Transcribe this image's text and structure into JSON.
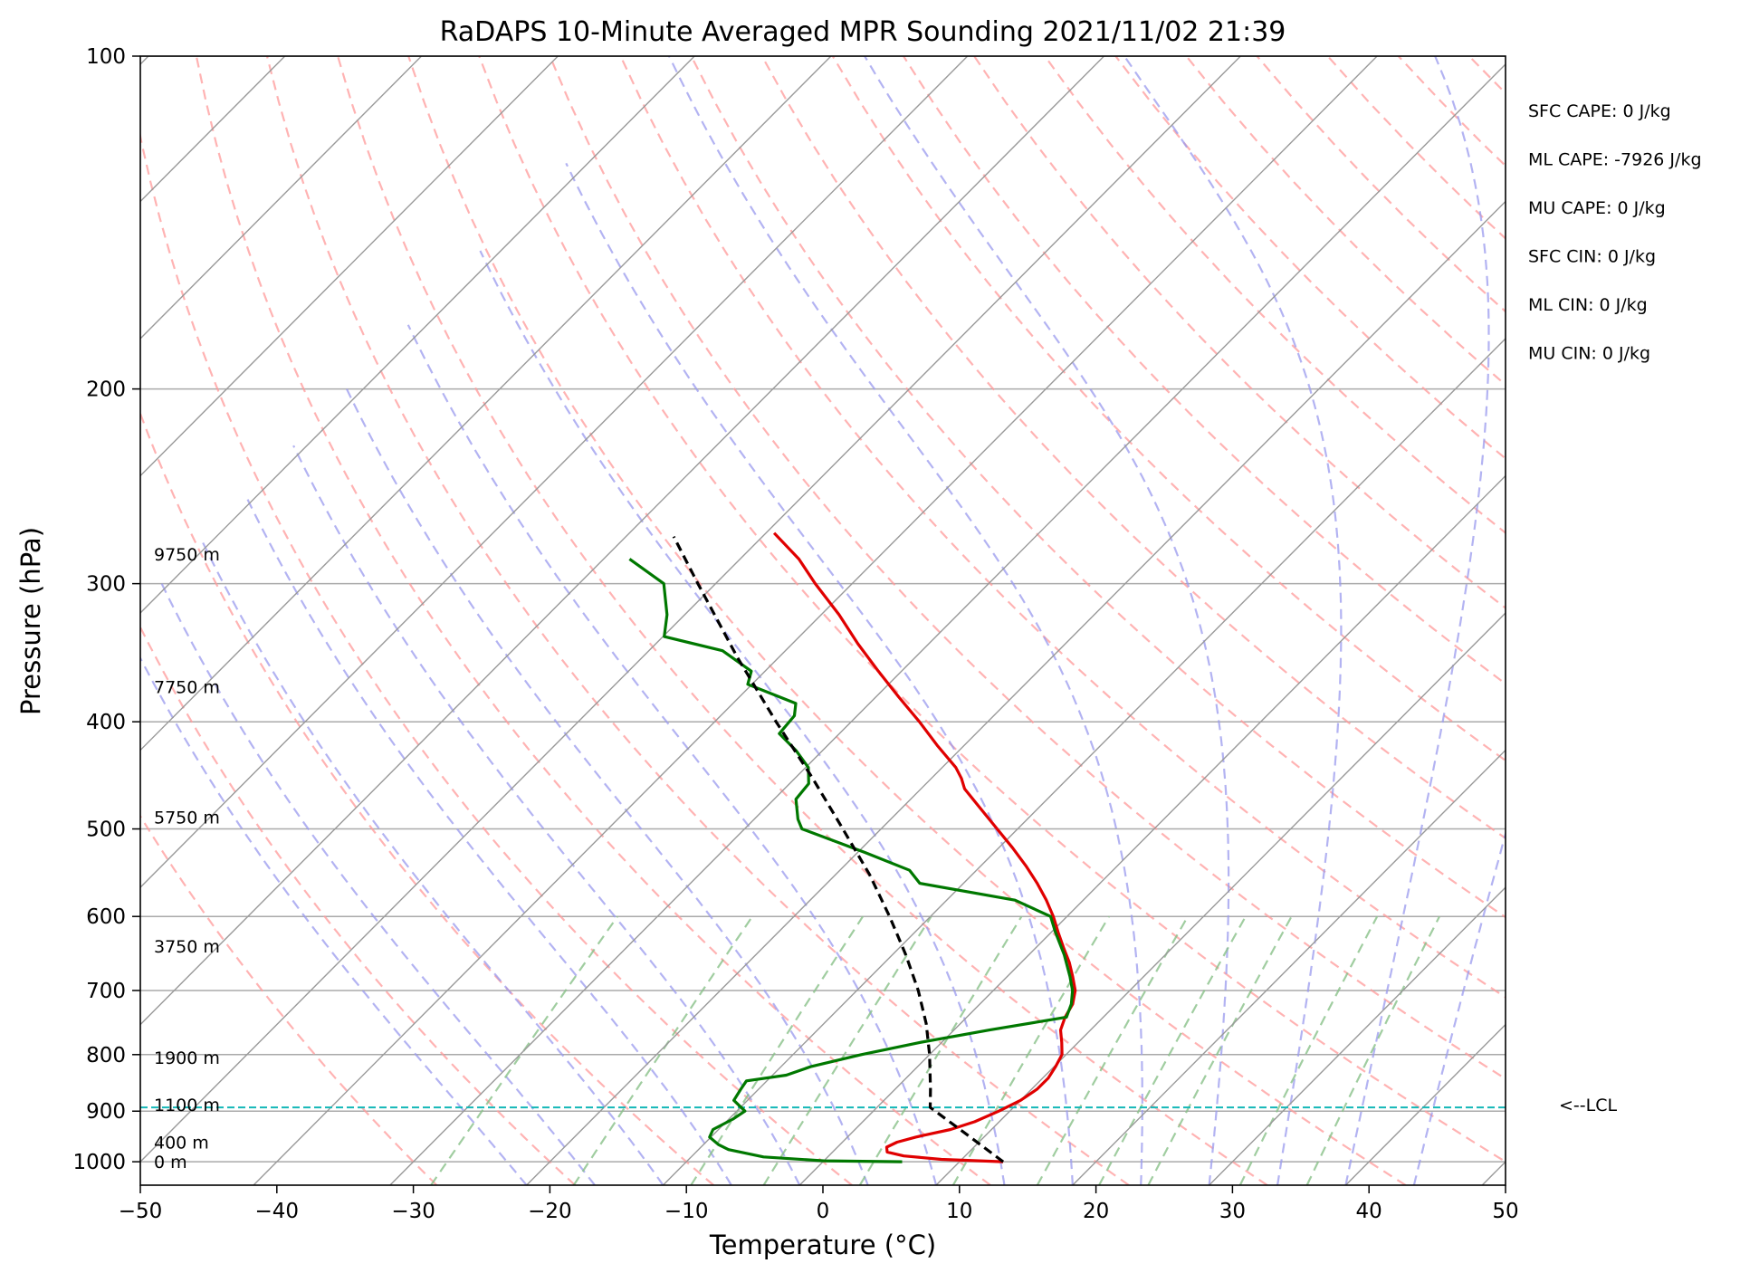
{
  "chart_data": {
    "type": "line",
    "chart_kind": "skew-T log-P sounding",
    "title": "RaDAPS 10-Minute Averaged MPR Sounding 2021/11/02 21:39",
    "xlabel": "Temperature (°C)",
    "ylabel": "Pressure (hPa)",
    "xlim": [
      -50,
      50
    ],
    "ylim": [
      1050,
      100
    ],
    "y_scale": "log",
    "x_ticks": [
      "−50",
      "−40",
      "−30",
      "−20",
      "−10",
      "0",
      "10",
      "20",
      "30",
      "40",
      "50"
    ],
    "x_tick_values": [
      -50,
      -40,
      -30,
      -20,
      -10,
      0,
      10,
      20,
      30,
      40,
      50
    ],
    "y_ticks": [
      "100",
      "200",
      "300",
      "400",
      "500",
      "600",
      "700",
      "800",
      "900",
      "1000"
    ],
    "y_tick_values": [
      100,
      200,
      300,
      400,
      500,
      600,
      700,
      800,
      900,
      1000
    ],
    "colors": {
      "temperature": "#e00000",
      "dewpoint": "#007800",
      "parcel": "#000000",
      "lcl": "#14b8b8",
      "dry_adiabat": "#ff9999",
      "moist_adiabat": "#9999ee",
      "mixing_ratio": "#88c088",
      "isotherm": "#999999",
      "isobar": "#aaaaaa"
    },
    "series": [
      {
        "key": "temperature",
        "points": [
          {
            "p": 1000,
            "t": 13.2
          },
          {
            "p": 995,
            "t": 8.5
          },
          {
            "p": 988,
            "t": 5.5
          },
          {
            "p": 980,
            "t": 4.0
          },
          {
            "p": 970,
            "t": 3.6
          },
          {
            "p": 960,
            "t": 4.0
          },
          {
            "p": 950,
            "t": 5.0
          },
          {
            "p": 935,
            "t": 7.0
          },
          {
            "p": 920,
            "t": 8.2
          },
          {
            "p": 900,
            "t": 9.2
          },
          {
            "p": 880,
            "t": 10.0
          },
          {
            "p": 860,
            "t": 10.4
          },
          {
            "p": 840,
            "t": 10.4
          },
          {
            "p": 820,
            "t": 10.1
          },
          {
            "p": 800,
            "t": 9.7
          },
          {
            "p": 780,
            "t": 8.8
          },
          {
            "p": 760,
            "t": 7.8
          },
          {
            "p": 740,
            "t": 7.2
          },
          {
            "p": 720,
            "t": 6.8
          },
          {
            "p": 700,
            "t": 6.0
          },
          {
            "p": 680,
            "t": 4.8
          },
          {
            "p": 660,
            "t": 3.5
          },
          {
            "p": 640,
            "t": 2.0
          },
          {
            "p": 620,
            "t": 0.5
          },
          {
            "p": 600,
            "t": -1.0
          },
          {
            "p": 580,
            "t": -2.7
          },
          {
            "p": 560,
            "t": -4.6
          },
          {
            "p": 540,
            "t": -6.7
          },
          {
            "p": 520,
            "t": -9.0
          },
          {
            "p": 500,
            "t": -11.5
          },
          {
            "p": 480,
            "t": -14.1
          },
          {
            "p": 460,
            "t": -16.8
          },
          {
            "p": 450,
            "t": -17.8
          },
          {
            "p": 440,
            "t": -19.0
          },
          {
            "p": 420,
            "t": -22.0
          },
          {
            "p": 400,
            "t": -25.0
          },
          {
            "p": 380,
            "t": -28.3
          },
          {
            "p": 360,
            "t": -31.7
          },
          {
            "p": 340,
            "t": -35.2
          },
          {
            "p": 320,
            "t": -38.7
          },
          {
            "p": 300,
            "t": -42.7
          },
          {
            "p": 285,
            "t": -45.7
          },
          {
            "p": 270,
            "t": -49.4
          }
        ]
      },
      {
        "key": "dewpoint",
        "points": [
          {
            "p": 1000,
            "t": 5.8
          },
          {
            "p": 998,
            "t": 0.0
          },
          {
            "p": 990,
            "t": -4.7
          },
          {
            "p": 975,
            "t": -7.8
          },
          {
            "p": 965,
            "t": -8.9
          },
          {
            "p": 950,
            "t": -10.1
          },
          {
            "p": 935,
            "t": -10.4
          },
          {
            "p": 915,
            "t": -9.7
          },
          {
            "p": 900,
            "t": -9.4
          },
          {
            "p": 880,
            "t": -11.0
          },
          {
            "p": 860,
            "t": -11.3
          },
          {
            "p": 845,
            "t": -11.5
          },
          {
            "p": 835,
            "t": -9.0
          },
          {
            "p": 820,
            "t": -7.8
          },
          {
            "p": 800,
            "t": -5.0
          },
          {
            "p": 780,
            "t": -1.6
          },
          {
            "p": 760,
            "t": 2.6
          },
          {
            "p": 740,
            "t": 7.3
          },
          {
            "p": 720,
            "t": 6.7
          },
          {
            "p": 700,
            "t": 5.8
          },
          {
            "p": 680,
            "t": 4.6
          },
          {
            "p": 650,
            "t": 2.6
          },
          {
            "p": 620,
            "t": 0.3
          },
          {
            "p": 600,
            "t": -1.2
          },
          {
            "p": 580,
            "t": -5.0
          },
          {
            "p": 560,
            "t": -13.2
          },
          {
            "p": 545,
            "t": -14.9
          },
          {
            "p": 525,
            "t": -19.5
          },
          {
            "p": 500,
            "t": -25.8
          },
          {
            "p": 490,
            "t": -26.8
          },
          {
            "p": 470,
            "t": -28.4
          },
          {
            "p": 455,
            "t": -28.6
          },
          {
            "p": 440,
            "t": -29.8
          },
          {
            "p": 425,
            "t": -31.9
          },
          {
            "p": 410,
            "t": -34.4
          },
          {
            "p": 395,
            "t": -34.6
          },
          {
            "p": 385,
            "t": -35.4
          },
          {
            "p": 370,
            "t": -40.3
          },
          {
            "p": 360,
            "t": -41.0
          },
          {
            "p": 345,
            "t": -44.6
          },
          {
            "p": 335,
            "t": -49.9
          },
          {
            "p": 320,
            "t": -51.3
          },
          {
            "p": 300,
            "t": -53.8
          },
          {
            "p": 285,
            "t": -58.1
          }
        ]
      },
      {
        "key": "parcel",
        "points": [
          {
            "p": 1000,
            "t": 13.2
          },
          {
            "p": 950,
            "t": 9.0
          },
          {
            "p": 893,
            "t": 3.9
          },
          {
            "p": 860,
            "t": 2.6
          },
          {
            "p": 800,
            "t": 0.0
          },
          {
            "p": 750,
            "t": -2.5
          },
          {
            "p": 700,
            "t": -5.5
          },
          {
            "p": 650,
            "t": -9.0
          },
          {
            "p": 600,
            "t": -13.0
          },
          {
            "p": 550,
            "t": -17.5
          },
          {
            "p": 500,
            "t": -22.8
          },
          {
            "p": 450,
            "t": -28.7
          },
          {
            "p": 400,
            "t": -35.5
          },
          {
            "p": 350,
            "t": -43.0
          },
          {
            "p": 300,
            "t": -51.3
          },
          {
            "p": 272,
            "t": -56.5
          }
        ]
      }
    ],
    "lcl_pressure": 893,
    "lcl_label": "<--LCL",
    "height_labels": [
      {
        "p": 1000,
        "text": "0 m"
      },
      {
        "p": 960,
        "text": "400 m"
      },
      {
        "p": 888,
        "text": "1100 m"
      },
      {
        "p": 805,
        "text": "1900 m"
      },
      {
        "p": 638,
        "text": "3750 m"
      },
      {
        "p": 488,
        "text": "5750 m"
      },
      {
        "p": 372,
        "text": "7750 m"
      },
      {
        "p": 282,
        "text": "9750 m"
      }
    ],
    "stats": [
      "SFC CAPE: 0 J/kg",
      "ML CAPE: -7926 J/kg",
      "MU CAPE: 0 J/kg",
      "SFC CIN: 0 J/kg",
      "ML CIN: 0 J/kg",
      "MU CIN: 0 J/kg"
    ]
  }
}
